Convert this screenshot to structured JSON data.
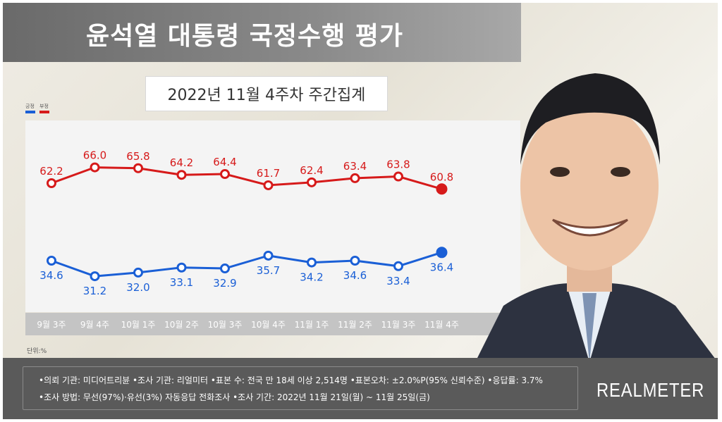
{
  "title": "윤석열 대통령 국정수행 평가",
  "subtitle": "2022년 11월 4주차 주간집계",
  "legend": [
    {
      "name": "긍정",
      "color": "#1a5fd6"
    },
    {
      "name": "부정",
      "color": "#d61a1a"
    }
  ],
  "unit": "단위:%",
  "chart_data": {
    "type": "line",
    "categories": [
      "9월 3주",
      "9월 4주",
      "10월 1주",
      "10월 2주",
      "10월 3주",
      "10월 4주",
      "11월 1주",
      "11월 2주",
      "11월 3주",
      "11월 4주"
    ],
    "series": [
      {
        "name": "부정",
        "color": "#d61a1a",
        "values": [
          62.2,
          66.0,
          65.8,
          64.2,
          64.4,
          61.7,
          62.4,
          63.4,
          63.8,
          60.8
        ]
      },
      {
        "name": "긍정",
        "color": "#1a5fd6",
        "values": [
          34.6,
          31.2,
          32.0,
          33.1,
          32.9,
          35.7,
          34.2,
          34.6,
          33.4,
          36.4
        ]
      }
    ]
  },
  "footer": {
    "line1": "•의뢰 기관: 미디어트리뷴 •조사 기관: 리얼미터 •표본 수: 전국 만 18세 이상 2,514명 •표본오차: ±2.0%P(95% 신뢰수준) •응답률: 3.7%",
    "line2": "•조사 방법: 무선(97%)·유선(3%) 자동응답 전화조사 •조사 기간: 2022년 11월 21일(월) ~ 11월 25일(금)",
    "brand": "REALMETER"
  }
}
